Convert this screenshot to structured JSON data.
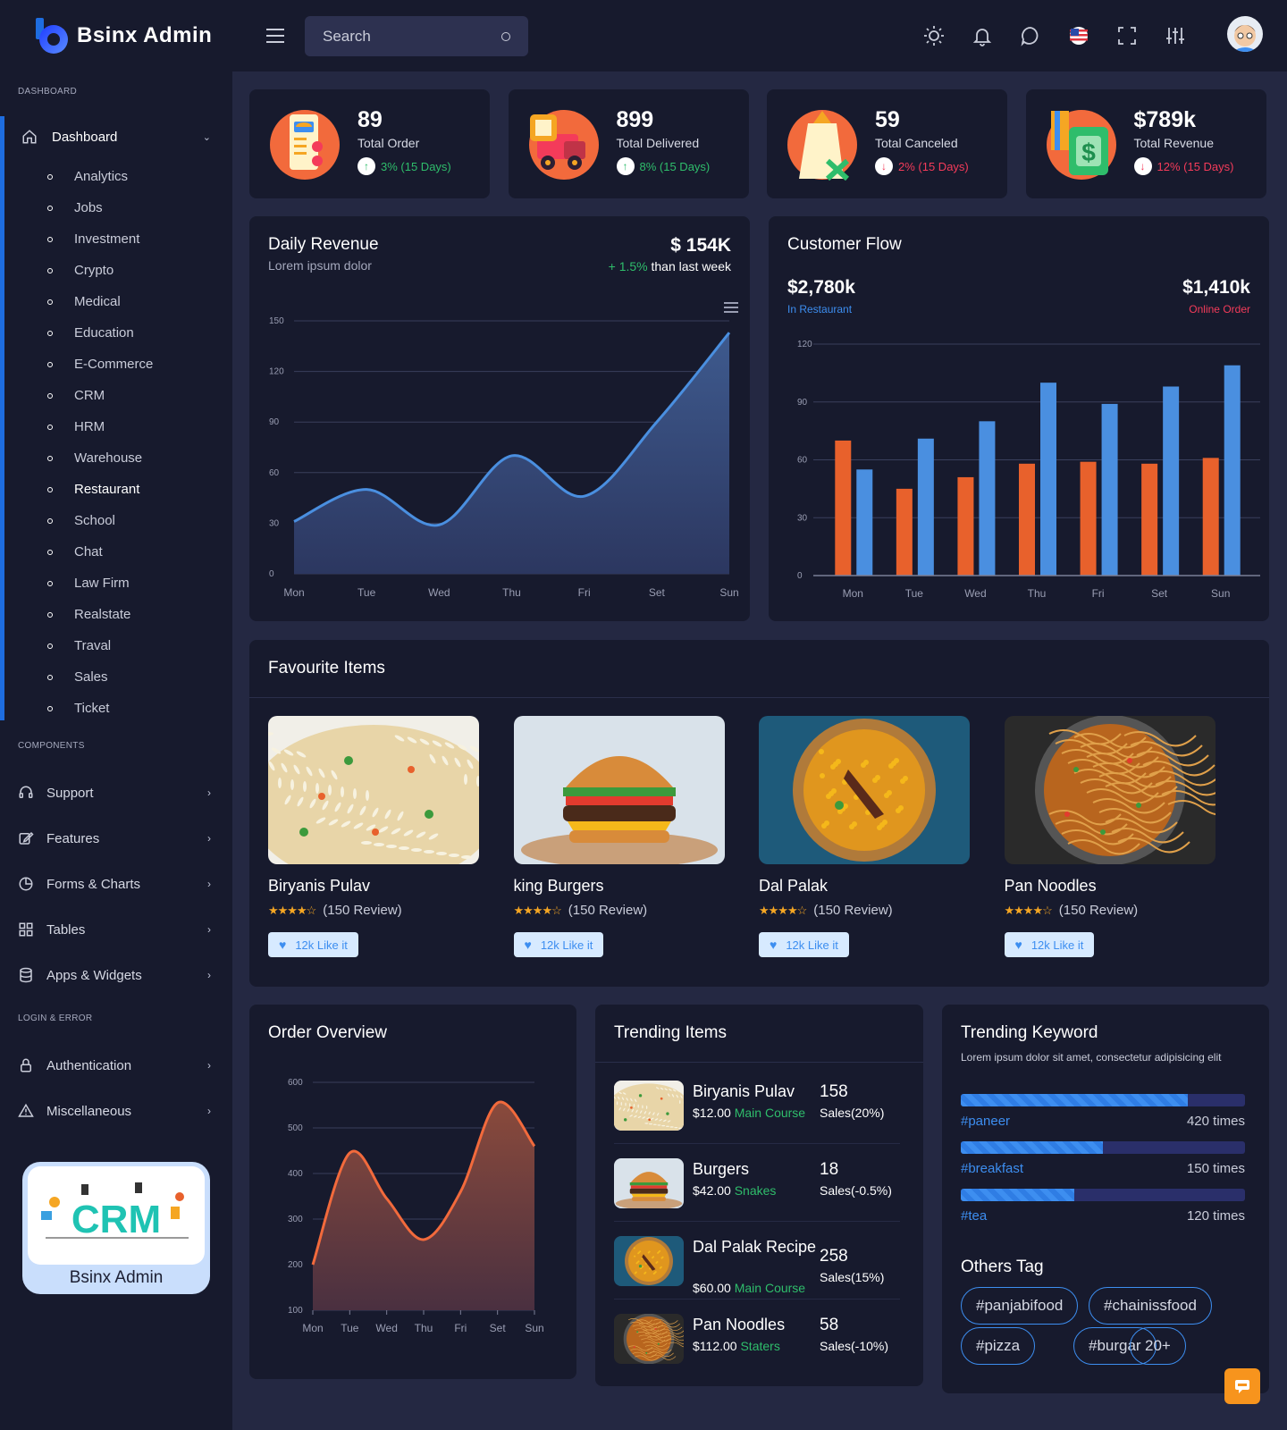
{
  "brand": {
    "name": "Bsinx Admin"
  },
  "sidebar": {
    "section_dashboard": "DASHBOARD",
    "section_components": "COMPONENTS",
    "section_login": "LOGIN & ERROR",
    "dashboard_label": "Dashboard",
    "dashboard_items": [
      "Analytics",
      "Jobs",
      "Investment",
      "Crypto",
      "Medical",
      "Education",
      "E-Commerce",
      "CRM",
      "HRM",
      "Warehouse",
      "Restaurant",
      "School",
      "Chat",
      "Law Firm",
      "Realstate",
      "Traval",
      "Sales",
      "Ticket"
    ],
    "active_item": "Restaurant",
    "components": [
      {
        "label": "Support",
        "icon": "headset-icon"
      },
      {
        "label": "Features",
        "icon": "edit-icon"
      },
      {
        "label": "Forms & Charts",
        "icon": "pie-chart-icon"
      },
      {
        "label": "Tables",
        "icon": "grid-icon"
      },
      {
        "label": "Apps & Widgets",
        "icon": "database-icon"
      }
    ],
    "login": [
      {
        "label": "Authentication",
        "icon": "lock-icon"
      },
      {
        "label": "Miscellaneous",
        "icon": "warning-icon"
      }
    ],
    "promo": {
      "title": "Bsinx Admin",
      "image_text": "CRM"
    }
  },
  "header": {
    "search_placeholder": "Search",
    "icons": [
      "sun-icon",
      "bell-icon",
      "chat-icon",
      "us-flag-icon",
      "fullscreen-icon",
      "settings-sliders-icon"
    ]
  },
  "stats": [
    {
      "value": "89",
      "label": "Total Order",
      "change": "3% (15 Days)",
      "direction": "up",
      "icon": "order-list-icon"
    },
    {
      "value": "899",
      "label": "Total Delivered",
      "change": "8% (15 Days)",
      "direction": "up",
      "icon": "delivery-truck-icon"
    },
    {
      "value": "59",
      "label": "Total Canceled",
      "change": "2% (15 Days)",
      "direction": "down",
      "icon": "cancel-bag-icon"
    },
    {
      "value": "$789k",
      "label": "Total Revenue",
      "change": "12% (15 Days)",
      "direction": "down",
      "icon": "money-icon"
    }
  ],
  "daily_revenue": {
    "title": "Daily Revenue",
    "subtitle": "Lorem ipsum dolor",
    "amount": "$ 154K",
    "change": "+ 1.5%",
    "change_suffix": "than last week"
  },
  "customer_flow": {
    "title": "Customer Flow",
    "left_value": "$2,780k",
    "left_label": "In Restaurant",
    "right_value": "$1,410k",
    "right_label": "Online Order"
  },
  "favourites": {
    "title": "Favourite Items",
    "items": [
      {
        "name": "Biryanis Pulav",
        "reviews": "(150 Review)",
        "likes": "12k Like it"
      },
      {
        "name": "king Burgers",
        "reviews": "(150 Review)",
        "likes": "12k Like it"
      },
      {
        "name": "Dal Palak",
        "reviews": "(150 Review)",
        "likes": "12k Like it"
      },
      {
        "name": "Pan Noodles",
        "reviews": "(150 Review)",
        "likes": "12k Like it"
      }
    ]
  },
  "order_overview": {
    "title": "Order Overview"
  },
  "trending": {
    "title": "Trending Items",
    "items": [
      {
        "name": "Biryanis Pulav",
        "price": "$12.00",
        "category": "Main Course",
        "count": "158",
        "sales": "Sales(20%)"
      },
      {
        "name": "Burgers",
        "price": "$42.00",
        "category": "Snakes",
        "count": "18",
        "sales": "Sales(-0.5%)"
      },
      {
        "name": "Dal Palak Recipe",
        "price": "$60.00",
        "category": "Main Course",
        "count": "258",
        "sales": "Sales(15%)"
      },
      {
        "name": "Pan Noodles",
        "price": "$112.00",
        "category": "Staters",
        "count": "58",
        "sales": "Sales(-10%)"
      }
    ]
  },
  "keywords": {
    "title": "Trending Keyword",
    "subtitle": "Lorem ipsum dolor sit amet, consectetur adipisicing elit",
    "items": [
      {
        "tag": "#paneer",
        "times": "420 times",
        "fraction": 0.8
      },
      {
        "tag": "#breakfast",
        "times": "150 times",
        "fraction": 0.5
      },
      {
        "tag": "#tea",
        "times": "120 times",
        "fraction": 0.4
      }
    ],
    "others_title": "Others Tag",
    "others": [
      "#panjabifood",
      "#chainissfood",
      "#pizza",
      "#burgar",
      "20+"
    ]
  },
  "colors": {
    "accent": "#3d8ef0",
    "orange": "#e8612c",
    "green": "#2fbd6b",
    "red": "#f43b5a"
  },
  "chart_data": [
    {
      "type": "area",
      "title": "Daily Revenue",
      "categories": [
        "Mon",
        "Tue",
        "Wed",
        "Thu",
        "Fri",
        "Set",
        "Sun"
      ],
      "values": [
        31,
        50,
        29,
        70,
        46,
        90,
        143
      ],
      "ylim": [
        0,
        150
      ],
      "yticks": [
        0,
        30,
        60,
        90,
        120,
        150
      ],
      "grid": true
    },
    {
      "type": "bar",
      "title": "Customer Flow",
      "categories": [
        "Mon",
        "Tue",
        "Wed",
        "Thu",
        "Fri",
        "Set",
        "Sun"
      ],
      "series": [
        {
          "values": [
            70,
            45,
            51,
            58,
            59,
            58,
            61
          ]
        },
        {
          "values": [
            55,
            71,
            80,
            100,
            89,
            98,
            109
          ]
        }
      ],
      "colors": [
        "#e8612c",
        "#4a8fe0"
      ],
      "ylim": [
        0,
        120
      ],
      "yticks": [
        0,
        30,
        60,
        90,
        120
      ],
      "grid": true
    },
    {
      "type": "area",
      "title": "Order Overview",
      "categories": [
        "Mon",
        "Tue",
        "Wed",
        "Thu",
        "Fri",
        "Set",
        "Sun"
      ],
      "values": [
        200,
        445,
        345,
        255,
        360,
        555,
        460
      ],
      "ylim": [
        100,
        600
      ],
      "yticks": [
        100,
        200,
        300,
        400,
        500,
        600
      ],
      "grid": true
    }
  ]
}
